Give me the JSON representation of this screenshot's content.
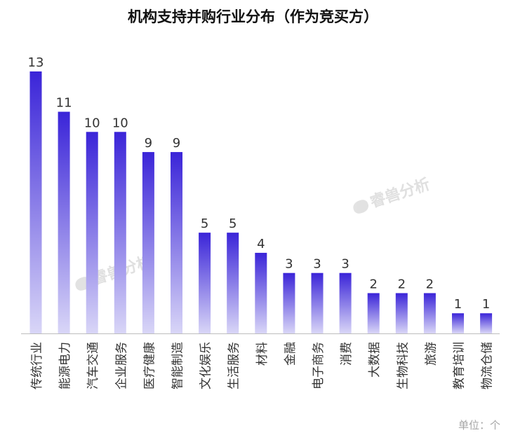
{
  "title": "机构支持并购行业分布（作为竞买方）",
  "unit_note": "单位：个",
  "watermark": "睿兽分析",
  "colors": {
    "bar_top": "#3a24d8",
    "bar_bottom": "#d9d6f7",
    "axis": "#bdbdbd",
    "label": "#333333"
  },
  "chart_data": {
    "type": "bar",
    "title": "机构支持并购行业分布（作为竞买方）",
    "categories": [
      "传统行业",
      "能源电力",
      "汽车交通",
      "企业服务",
      "医疗健康",
      "智能制造",
      "文化娱乐",
      "生活服务",
      "材料",
      "金融",
      "电子商务",
      "消费",
      "大数据",
      "生物科技",
      "旅游",
      "教育培训",
      "物流仓储"
    ],
    "values": [
      13,
      11,
      10,
      10,
      9,
      9,
      5,
      5,
      4,
      3,
      3,
      3,
      2,
      2,
      2,
      1,
      1
    ],
    "ylim": [
      0,
      13
    ],
    "grid": false,
    "data_labels": true
  }
}
